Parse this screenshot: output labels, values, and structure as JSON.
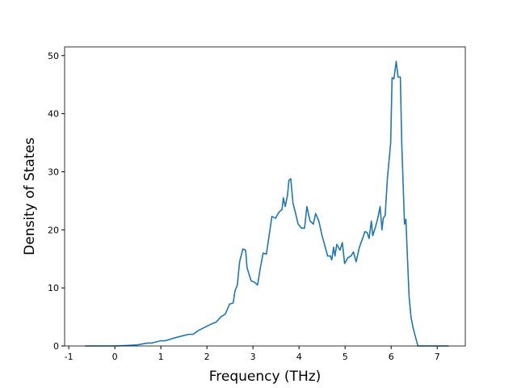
{
  "chart_data": {
    "type": "line",
    "xlabel": "Frequency (THz)",
    "ylabel": "Density of States",
    "xlim": [
      -1.09,
      7.61
    ],
    "ylim": [
      0,
      51.5
    ],
    "xticks": [
      -1,
      0,
      1,
      2,
      3,
      4,
      5,
      6,
      7
    ],
    "yticks": [
      0,
      10,
      20,
      30,
      40,
      50
    ],
    "series": [
      {
        "color": "#1f77b4",
        "x": [
          -0.65,
          0,
          0.3,
          0.5,
          0.7,
          0.8,
          1.0,
          1.1,
          1.3,
          1.5,
          1.6,
          1.7,
          1.8,
          2.0,
          2.1,
          2.2,
          2.3,
          2.4,
          2.49,
          2.57,
          2.61,
          2.66,
          2.71,
          2.78,
          2.84,
          2.87,
          2.96,
          3.03,
          3.1,
          3.15,
          3.22,
          3.29,
          3.36,
          3.41,
          3.49,
          3.56,
          3.63,
          3.66,
          3.7,
          3.75,
          3.78,
          3.82,
          3.87,
          3.92,
          3.98,
          4.05,
          4.12,
          4.17,
          4.24,
          4.31,
          4.36,
          4.43,
          4.5,
          4.57,
          4.62,
          4.68,
          4.71,
          4.75,
          4.78,
          4.82,
          4.89,
          4.94,
          4.99,
          5.06,
          5.13,
          5.18,
          5.24,
          5.31,
          5.38,
          5.43,
          5.48,
          5.52,
          5.57,
          5.6,
          5.66,
          5.71,
          5.76,
          5.8,
          5.83,
          5.87,
          5.92,
          5.99,
          6.02,
          6.06,
          6.11,
          6.15,
          6.2,
          6.23,
          6.29,
          6.32,
          6.36,
          6.39,
          6.43,
          6.48,
          6.53,
          6.58,
          7.25
        ],
        "values": [
          0,
          0,
          0.1,
          0.2,
          0.5,
          0.5,
          0.9,
          0.9,
          1.4,
          1.8,
          2.0,
          2.0,
          2.6,
          3.4,
          3.8,
          4.1,
          5.0,
          5.5,
          7.2,
          7.4,
          9.5,
          10.5,
          14.5,
          16.7,
          16.5,
          13.5,
          11.2,
          11,
          10.5,
          13,
          16,
          15.8,
          19.5,
          22.3,
          22,
          23,
          23.5,
          25.5,
          24,
          26,
          28.5,
          28.8,
          24.5,
          23,
          21,
          20.3,
          20.3,
          24,
          21.5,
          21,
          22.8,
          21.5,
          19,
          17,
          15.5,
          15.5,
          14.8,
          17,
          15.5,
          17.5,
          16.5,
          17.8,
          14.2,
          15.2,
          15.5,
          16.2,
          14.5,
          17,
          18.5,
          19.7,
          19.5,
          18.5,
          21.5,
          19,
          20.5,
          22,
          24,
          20,
          22,
          22.5,
          29,
          35,
          46.2,
          46,
          49,
          46.3,
          46.3,
          35,
          21,
          21.8,
          14,
          8.5,
          5,
          3,
          1.5,
          0,
          0
        ]
      }
    ]
  }
}
